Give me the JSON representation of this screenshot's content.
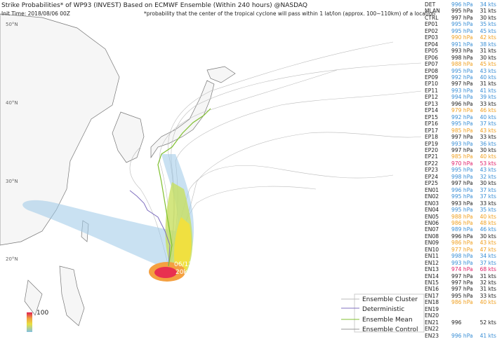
{
  "header": {
    "title": "Strike Probabilities* of WP93 (INVEST) Based on ECMWF Ensemble (Within 240 hours) @NASDAQ",
    "init_time": "Init Time: 2018/08/06 00Z",
    "note": "*probability that the center of the tropical cyclone will pass within 1 lat/lon (approx. 100~110km) of a location"
  },
  "map": {
    "lat_labels": [
      "50°N",
      "40°N",
      "30°N",
      "20°N"
    ],
    "storm_label": "06/12Z",
    "storm_wind": "20kt",
    "colorbar_max": "100"
  },
  "legend": {
    "items": [
      "Ensemble Cluster",
      "Deterministic",
      "Ensemble Mean",
      "Ensemble Control"
    ]
  },
  "table": {
    "rows": [
      {
        "name": "DET",
        "pressure": "996 hPa",
        "speed": "34 kts",
        "color": "#3a8fd6"
      },
      {
        "name": "MLAN",
        "pressure": "995 hPa",
        "speed": "31 kts",
        "color": "#222222"
      },
      {
        "name": "CTRL",
        "pressure": "997 hPa",
        "speed": "30 kts",
        "color": "#222222"
      },
      {
        "name": "EP01",
        "pressure": "995 hPa",
        "speed": "35 kts",
        "color": "#3a8fd6"
      },
      {
        "name": "EP02",
        "pressure": "995 hPa",
        "speed": "45 kts",
        "color": "#3a8fd6"
      },
      {
        "name": "EP03",
        "pressure": "990 hPa",
        "speed": "42 kts",
        "color": "#f0a020"
      },
      {
        "name": "EP04",
        "pressure": "991 hPa",
        "speed": "38 kts",
        "color": "#3a8fd6"
      },
      {
        "name": "EP05",
        "pressure": "993 hPa",
        "speed": "31 kts",
        "color": "#222222"
      },
      {
        "name": "EP06",
        "pressure": "998 hPa",
        "speed": "30 kts",
        "color": "#222222"
      },
      {
        "name": "EP07",
        "pressure": "988 hPa",
        "speed": "45 kts",
        "color": "#f0a020"
      },
      {
        "name": "EP08",
        "pressure": "995 hPa",
        "speed": "43 kts",
        "color": "#3a8fd6"
      },
      {
        "name": "EP09",
        "pressure": "992 hPa",
        "speed": "40 kts",
        "color": "#3a8fd6"
      },
      {
        "name": "EP10",
        "pressure": "997 hPa",
        "speed": "31 kts",
        "color": "#222222"
      },
      {
        "name": "EP11",
        "pressure": "993 hPa",
        "speed": "41 kts",
        "color": "#3a8fd6"
      },
      {
        "name": "EP12",
        "pressure": "994 hPa",
        "speed": "39 kts",
        "color": "#3a8fd6"
      },
      {
        "name": "EP13",
        "pressure": "996 hPa",
        "speed": "33 kts",
        "color": "#222222"
      },
      {
        "name": "EP14",
        "pressure": "979 hPa",
        "speed": "46 kts",
        "color": "#f0a020"
      },
      {
        "name": "EP15",
        "pressure": "992 hPa",
        "speed": "40 kts",
        "color": "#3a8fd6"
      },
      {
        "name": "EP16",
        "pressure": "995 hPa",
        "speed": "37 kts",
        "color": "#3a8fd6"
      },
      {
        "name": "EP17",
        "pressure": "985 hPa",
        "speed": "43 kts",
        "color": "#f0a020"
      },
      {
        "name": "EP18",
        "pressure": "997 hPa",
        "speed": "33 kts",
        "color": "#222222"
      },
      {
        "name": "EP19",
        "pressure": "993 hPa",
        "speed": "36 kts",
        "color": "#3a8fd6"
      },
      {
        "name": "EP20",
        "pressure": "997 hPa",
        "speed": "30 kts",
        "color": "#222222"
      },
      {
        "name": "EP21",
        "pressure": "985 hPa",
        "speed": "40 kts",
        "color": "#f0a020"
      },
      {
        "name": "EP22",
        "pressure": "970 hPa",
        "speed": "53 kts",
        "color": "#e0206a"
      },
      {
        "name": "EP23",
        "pressure": "995 hPa",
        "speed": "43 kts",
        "color": "#3a8fd6"
      },
      {
        "name": "EP24",
        "pressure": "998 hPa",
        "speed": "32 kts",
        "color": "#3a8fd6"
      },
      {
        "name": "EP25",
        "pressure": "997 hPa",
        "speed": "30 kts",
        "color": "#222222"
      },
      {
        "name": "EN01",
        "pressure": "996 hPa",
        "speed": "37 kts",
        "color": "#3a8fd6"
      },
      {
        "name": "EN02",
        "pressure": "995 hPa",
        "speed": "37 kts",
        "color": "#3a8fd6"
      },
      {
        "name": "EN03",
        "pressure": "993 hPa",
        "speed": "33 kts",
        "color": "#222222"
      },
      {
        "name": "EN04",
        "pressure": "995 hPa",
        "speed": "35 kts",
        "color": "#3a8fd6"
      },
      {
        "name": "EN05",
        "pressure": "988 hPa",
        "speed": "40 kts",
        "color": "#f0a020"
      },
      {
        "name": "EN06",
        "pressure": "986 hPa",
        "speed": "48 kts",
        "color": "#f0a020"
      },
      {
        "name": "EN07",
        "pressure": "989 hPa",
        "speed": "46 kts",
        "color": "#3a8fd6"
      },
      {
        "name": "EN08",
        "pressure": "996 hPa",
        "speed": "30 kts",
        "color": "#222222"
      },
      {
        "name": "EN09",
        "pressure": "986 hPa",
        "speed": "43 kts",
        "color": "#f0a020"
      },
      {
        "name": "EN10",
        "pressure": "977 hPa",
        "speed": "47 kts",
        "color": "#f0a020"
      },
      {
        "name": "EN11",
        "pressure": "998 hPa",
        "speed": "34 kts",
        "color": "#3a8fd6"
      },
      {
        "name": "EN12",
        "pressure": "993 hPa",
        "speed": "37 kts",
        "color": "#3a8fd6"
      },
      {
        "name": "EN13",
        "pressure": "974 hPa",
        "speed": "68 kts",
        "color": "#e0206a"
      },
      {
        "name": "EN14",
        "pressure": "997 hPa",
        "speed": "31 kts",
        "color": "#222222"
      },
      {
        "name": "EN15",
        "pressure": "997 hPa",
        "speed": "32 kts",
        "color": "#222222"
      },
      {
        "name": "EN16",
        "pressure": "997 hPa",
        "speed": "31 kts",
        "color": "#222222"
      },
      {
        "name": "EN17",
        "pressure": "995 hPa",
        "speed": "33 kts",
        "color": "#222222"
      },
      {
        "name": "EN18",
        "pressure": "986 hPa",
        "speed": "40 kts",
        "color": "#f0a020"
      },
      {
        "name": "EN19",
        "color": "#3a8fd6"
      },
      {
        "name": "EN20",
        "color": "#3a8fd6"
      },
      {
        "name": "EN21",
        "pressure": "996",
        "speed": "52 kts",
        "color": "#222222"
      },
      {
        "name": "EN22",
        "color": "#3a8fd6"
      },
      {
        "name": "EN23",
        "pressure": "996 hPa",
        "speed": "41 kts",
        "color": "#3a8fd6"
      }
    ]
  }
}
